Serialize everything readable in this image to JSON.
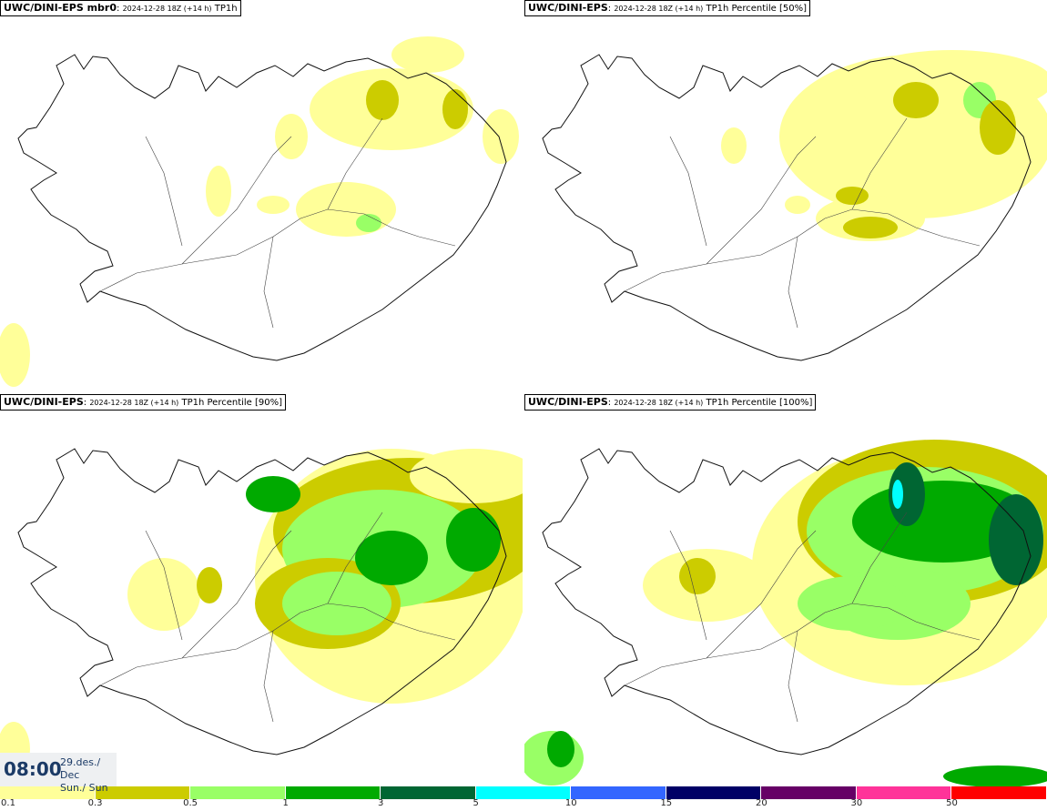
{
  "panels": [
    {
      "model": "UWC/DINI-EPS mbr0",
      "run": "2024-12-28 18Z (+14 h)",
      "param": "TP1h",
      "level": 0
    },
    {
      "model": "UWC/DINI-EPS",
      "run": "2024-12-28 18Z (+14 h)",
      "param": "TP1h Percentile [50%]",
      "level": 1
    },
    {
      "model": "UWC/DINI-EPS",
      "run": "2024-12-28 18Z (+14 h)",
      "param": "TP1h Percentile [90%]",
      "level": 2
    },
    {
      "model": "UWC/DINI-EPS",
      "run": "2024-12-28 18Z (+14 h)",
      "param": "TP1h Percentile [100%]",
      "level": 3
    }
  ],
  "time": {
    "clock": "08:00",
    "date_line1": "29.des./ Dec",
    "date_line2": "Sun./ Sun"
  },
  "legend": {
    "colors": [
      "#ffff99",
      "#cccc00",
      "#99ff66",
      "#00aa00",
      "#006633",
      "#00ffff",
      "#3366ff",
      "#000066",
      "#660066",
      "#ff3399",
      "#ff0000"
    ],
    "ticks": [
      "0.1",
      "0.3",
      "0.5",
      "1",
      "3",
      "5",
      "10",
      "15",
      "20",
      "30",
      "50"
    ]
  }
}
